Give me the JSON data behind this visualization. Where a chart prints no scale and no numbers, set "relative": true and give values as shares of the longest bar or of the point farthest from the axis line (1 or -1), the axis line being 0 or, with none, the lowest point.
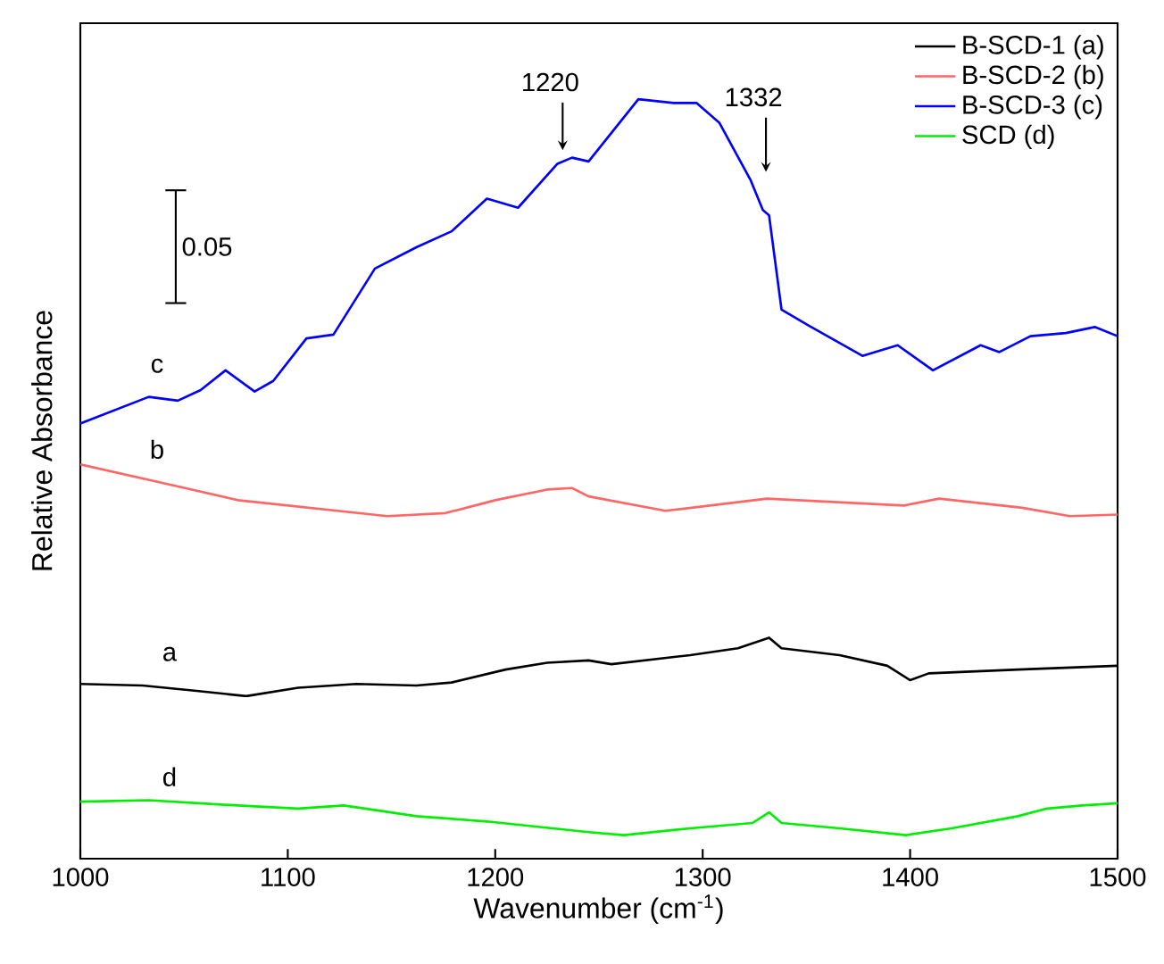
{
  "chart_data": {
    "type": "line",
    "relative": true,
    "xlabel": "Wavenumber (cm$^{-1}$)",
    "ylabel": "Relative Absorbance",
    "xlim": [
      1000,
      1500
    ],
    "xticks": [
      1000,
      1100,
      1200,
      1300,
      1400,
      1500
    ],
    "legend": "top right",
    "grid": false,
    "marker": "none",
    "line_style": "solid",
    "series": [
      {
        "name": "B-SCD-1 (a)",
        "color": "#000000",
        "x": [
          1000,
          1030,
          1056,
          1080,
          1105,
          1133,
          1162,
          1179,
          1205,
          1225,
          1245,
          1256,
          1294,
          1317,
          1332,
          1338,
          1366,
          1389,
          1400,
          1409,
          1452,
          1500
        ],
        "values": [
          0.23,
          0.228,
          0.221,
          0.214,
          0.225,
          0.23,
          0.228,
          0.232,
          0.249,
          0.258,
          0.261,
          0.256,
          0.268,
          0.277,
          0.291,
          0.277,
          0.268,
          0.254,
          0.235,
          0.244,
          0.249,
          0.254
        ]
      },
      {
        "name": "B-SCD-2 (b)",
        "color": "#ff6666",
        "x": [
          1000,
          1039,
          1076,
          1148,
          1176,
          1200,
          1225,
          1237,
          1245,
          1282,
          1331,
          1397,
          1414,
          1454,
          1477,
          1500
        ],
        "values": [
          0.519,
          0.495,
          0.472,
          0.451,
          0.455,
          0.472,
          0.486,
          0.488,
          0.477,
          0.458,
          0.474,
          0.465,
          0.474,
          0.462,
          0.451,
          0.453
        ]
      },
      {
        "name": "B-SCD-3 (c)",
        "color": "#0000ff",
        "x": [
          1000,
          1033,
          1047,
          1058,
          1070,
          1084,
          1093,
          1109,
          1122,
          1142,
          1162,
          1179,
          1196,
          1211,
          1230,
          1237,
          1245,
          1269,
          1286,
          1297,
          1308,
          1323,
          1329,
          1332,
          1338,
          1351,
          1377,
          1394,
          1411,
          1434,
          1443,
          1458,
          1475,
          1489,
          1500
        ],
        "values": [
          0.573,
          0.608,
          0.603,
          0.617,
          0.643,
          0.615,
          0.629,
          0.685,
          0.69,
          0.777,
          0.805,
          0.826,
          0.869,
          0.857,
          0.915,
          0.923,
          0.918,
          1.0,
          0.995,
          0.995,
          0.969,
          0.894,
          0.854,
          0.847,
          0.723,
          0.702,
          0.662,
          0.676,
          0.643,
          0.676,
          0.667,
          0.688,
          0.692,
          0.7,
          0.688
        ]
      },
      {
        "name": "SCD (d)",
        "color": "#00ee00",
        "x": [
          1000,
          1033,
          1076,
          1105,
          1127,
          1162,
          1196,
          1245,
          1262,
          1294,
          1324,
          1332,
          1338,
          1366,
          1398,
          1420,
          1452,
          1466,
          1483,
          1500
        ],
        "values": [
          0.075,
          0.077,
          0.07,
          0.066,
          0.07,
          0.056,
          0.049,
          0.035,
          0.031,
          0.04,
          0.047,
          0.061,
          0.047,
          0.04,
          0.031,
          0.04,
          0.056,
          0.066,
          0.07,
          0.073
        ]
      }
    ],
    "annotations": [
      "0.05",
      "1220",
      "1332",
      "a",
      "b",
      "c",
      "d"
    ]
  }
}
